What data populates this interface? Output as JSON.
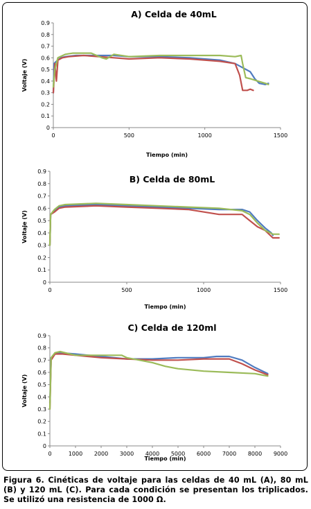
{
  "colors": {
    "blue": "#4f7bc0",
    "red": "#c0504d",
    "green": "#9bbb59"
  },
  "caption": "Figura 6. Cinéticas de voltaje para las celdas de 40 mL (A), 80 mL (B) y 120 mL (C). Para cada condición se presentan los triplicados. Se utilizó una resistencia de 1000 Ω.",
  "chart_data": [
    {
      "type": "line",
      "title": "A) Celda de 40mL",
      "xlabel": "Tiempo (min)",
      "ylabel": "Voltaje (V)",
      "xlim": [
        0,
        1500
      ],
      "ylim": [
        0,
        0.9
      ],
      "xticks": [
        0,
        500,
        1000,
        1500
      ],
      "yticks": [
        0,
        0.1,
        0.2,
        0.3,
        0.4,
        0.5,
        0.6,
        0.7,
        0.8,
        0.9
      ],
      "grid": false,
      "legend": "none",
      "series": [
        {
          "color": "blue",
          "points": [
            [
              0,
              0.3
            ],
            [
              5,
              0.55
            ],
            [
              20,
              0.57
            ],
            [
              50,
              0.6
            ],
            [
              80,
              0.61
            ],
            [
              150,
              0.62
            ],
            [
              300,
              0.62
            ],
            [
              400,
              0.62
            ],
            [
              500,
              0.61
            ],
            [
              700,
              0.61
            ],
            [
              900,
              0.6
            ],
            [
              1100,
              0.58
            ],
            [
              1200,
              0.55
            ],
            [
              1300,
              0.48
            ],
            [
              1330,
              0.42
            ],
            [
              1360,
              0.38
            ],
            [
              1400,
              0.37
            ],
            [
              1420,
              0.38
            ]
          ]
        },
        {
          "color": "red",
          "points": [
            [
              0,
              0.3
            ],
            [
              10,
              0.55
            ],
            [
              20,
              0.4
            ],
            [
              30,
              0.58
            ],
            [
              60,
              0.6
            ],
            [
              100,
              0.61
            ],
            [
              200,
              0.62
            ],
            [
              400,
              0.6
            ],
            [
              500,
              0.59
            ],
            [
              700,
              0.6
            ],
            [
              900,
              0.59
            ],
            [
              1100,
              0.57
            ],
            [
              1200,
              0.55
            ],
            [
              1230,
              0.45
            ],
            [
              1250,
              0.32
            ],
            [
              1280,
              0.32
            ],
            [
              1300,
              0.33
            ],
            [
              1320,
              0.32
            ]
          ]
        },
        {
          "color": "green",
          "points": [
            [
              0,
              0.35
            ],
            [
              10,
              0.5
            ],
            [
              30,
              0.6
            ],
            [
              80,
              0.63
            ],
            [
              130,
              0.64
            ],
            [
              250,
              0.64
            ],
            [
              320,
              0.6
            ],
            [
              350,
              0.59
            ],
            [
              400,
              0.63
            ],
            [
              500,
              0.61
            ],
            [
              700,
              0.62
            ],
            [
              900,
              0.62
            ],
            [
              1100,
              0.62
            ],
            [
              1200,
              0.61
            ],
            [
              1240,
              0.62
            ],
            [
              1250,
              0.55
            ],
            [
              1270,
              0.43
            ],
            [
              1300,
              0.42
            ],
            [
              1350,
              0.4
            ],
            [
              1400,
              0.38
            ],
            [
              1420,
              0.37
            ]
          ]
        }
      ]
    },
    {
      "type": "line",
      "title": "B) Celda de 80mL",
      "xlabel": "Tiempo (min)",
      "ylabel": "Voltaje (V)",
      "xlim": [
        0,
        1500
      ],
      "ylim": [
        0,
        0.9
      ],
      "xticks": [
        0,
        500,
        1000,
        1500
      ],
      "yticks": [
        0,
        0.1,
        0.2,
        0.3,
        0.4,
        0.5,
        0.6,
        0.7,
        0.8,
        0.9
      ],
      "grid": false,
      "legend": "none",
      "series": [
        {
          "color": "blue",
          "points": [
            [
              0,
              0.3
            ],
            [
              5,
              0.55
            ],
            [
              30,
              0.58
            ],
            [
              60,
              0.61
            ],
            [
              100,
              0.62
            ],
            [
              300,
              0.63
            ],
            [
              500,
              0.62
            ],
            [
              700,
              0.61
            ],
            [
              900,
              0.6
            ],
            [
              1100,
              0.59
            ],
            [
              1250,
              0.59
            ],
            [
              1300,
              0.57
            ],
            [
              1350,
              0.5
            ],
            [
              1400,
              0.44
            ],
            [
              1440,
              0.4
            ],
            [
              1450,
              0.38
            ]
          ]
        },
        {
          "color": "red",
          "points": [
            [
              0,
              0.3
            ],
            [
              5,
              0.55
            ],
            [
              30,
              0.57
            ],
            [
              60,
              0.6
            ],
            [
              100,
              0.61
            ],
            [
              300,
              0.62
            ],
            [
              500,
              0.61
            ],
            [
              700,
              0.6
            ],
            [
              900,
              0.59
            ],
            [
              1100,
              0.55
            ],
            [
              1250,
              0.55
            ],
            [
              1300,
              0.5
            ],
            [
              1350,
              0.45
            ],
            [
              1400,
              0.42
            ],
            [
              1450,
              0.36
            ],
            [
              1490,
              0.36
            ]
          ]
        },
        {
          "color": "green",
          "points": [
            [
              0,
              0.3
            ],
            [
              5,
              0.55
            ],
            [
              30,
              0.59
            ],
            [
              60,
              0.62
            ],
            [
              100,
              0.63
            ],
            [
              300,
              0.64
            ],
            [
              500,
              0.63
            ],
            [
              700,
              0.62
            ],
            [
              900,
              0.61
            ],
            [
              1100,
              0.6
            ],
            [
              1250,
              0.58
            ],
            [
              1300,
              0.55
            ],
            [
              1350,
              0.48
            ],
            [
              1400,
              0.42
            ],
            [
              1450,
              0.39
            ],
            [
              1490,
              0.39
            ]
          ]
        }
      ]
    },
    {
      "type": "line",
      "title": "C) Celda de 120ml",
      "xlabel": "Tiempo (min)",
      "ylabel": "Voltaje (V)",
      "xlim": [
        0,
        9000
      ],
      "ylim": [
        0,
        0.9
      ],
      "xticks": [
        0,
        1000,
        2000,
        3000,
        4000,
        5000,
        6000,
        7000,
        8000,
        9000
      ],
      "yticks": [
        0,
        0.1,
        0.2,
        0.3,
        0.4,
        0.5,
        0.6,
        0.7,
        0.8,
        0.9
      ],
      "grid": false,
      "legend": "none",
      "series": [
        {
          "color": "blue",
          "points": [
            [
              0,
              0.35
            ],
            [
              50,
              0.72
            ],
            [
              200,
              0.75
            ],
            [
              400,
              0.76
            ],
            [
              1000,
              0.75
            ],
            [
              2000,
              0.73
            ],
            [
              3000,
              0.71
            ],
            [
              4000,
              0.71
            ],
            [
              5000,
              0.72
            ],
            [
              6000,
              0.72
            ],
            [
              6500,
              0.73
            ],
            [
              7000,
              0.73
            ],
            [
              7500,
              0.7
            ],
            [
              8000,
              0.64
            ],
            [
              8500,
              0.59
            ]
          ]
        },
        {
          "color": "red",
          "points": [
            [
              0,
              0.3
            ],
            [
              50,
              0.7
            ],
            [
              200,
              0.75
            ],
            [
              500,
              0.75
            ],
            [
              1000,
              0.74
            ],
            [
              2000,
              0.72
            ],
            [
              3000,
              0.71
            ],
            [
              4000,
              0.7
            ],
            [
              5000,
              0.7
            ],
            [
              6000,
              0.71
            ],
            [
              7000,
              0.71
            ],
            [
              7500,
              0.67
            ],
            [
              8000,
              0.62
            ],
            [
              8500,
              0.58
            ]
          ]
        },
        {
          "color": "green",
          "points": [
            [
              0,
              0.3
            ],
            [
              50,
              0.72
            ],
            [
              200,
              0.76
            ],
            [
              400,
              0.77
            ],
            [
              1000,
              0.74
            ],
            [
              2000,
              0.74
            ],
            [
              2800,
              0.74
            ],
            [
              3000,
              0.72
            ],
            [
              4000,
              0.68
            ],
            [
              4500,
              0.65
            ],
            [
              5000,
              0.63
            ],
            [
              6000,
              0.61
            ],
            [
              7000,
              0.6
            ],
            [
              8000,
              0.59
            ],
            [
              8500,
              0.57
            ]
          ]
        }
      ]
    }
  ]
}
